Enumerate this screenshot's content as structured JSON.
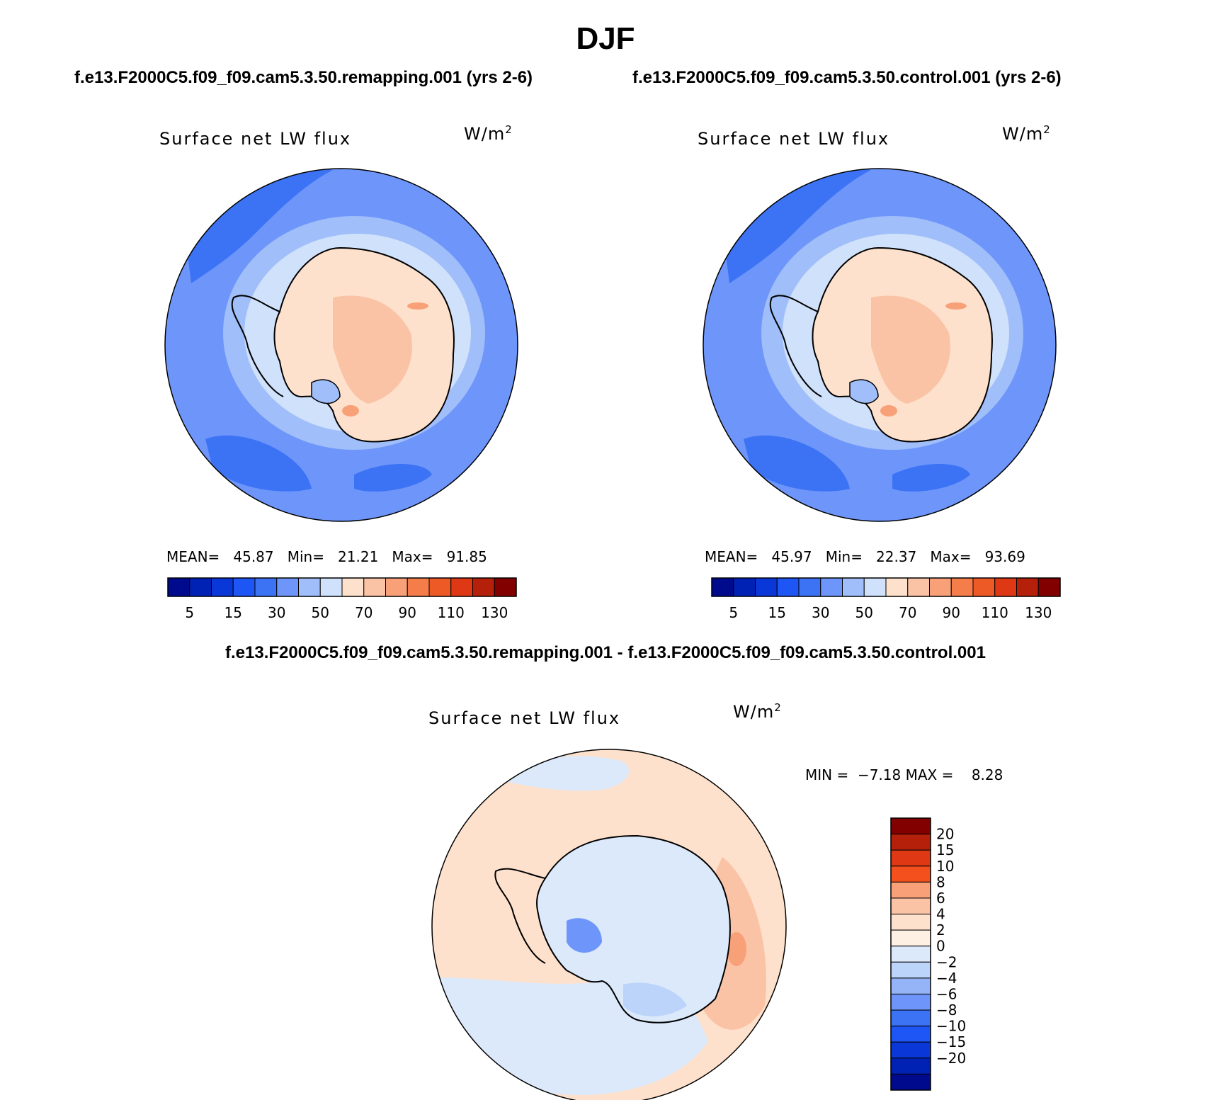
{
  "page": {
    "title": "DJF",
    "diff_subtitle": "f.e13.F2000C5.f09_f09.cam5.3.50.remapping.001 - f.e13.F2000C5.f09_f09.cam5.3.50.control.001"
  },
  "chart_data": [
    {
      "type": "heatmap",
      "subtitle": "f.e13.F2000C5.f09_f09.cam5.3.50.remapping.001 (yrs 2-6)",
      "title": "Surface net LW flux",
      "units_base": "W/m",
      "units_exp": "2",
      "stats": {
        "mean_label": "MEAN=",
        "mean": "45.87",
        "min_label": "Min=",
        "min": "21.21",
        "max_label": "Max=",
        "max": "91.85"
      },
      "colorbar": {
        "levels": [
          5,
          10,
          15,
          20,
          30,
          40,
          50,
          60,
          70,
          80,
          90,
          100,
          110,
          120,
          130
        ],
        "tick_labels": [
          "5",
          "15",
          "30",
          "50",
          "70",
          "90",
          "110",
          "130"
        ],
        "colors": [
          "#000a8c",
          "#0022b4",
          "#0a37d7",
          "#1e55f5",
          "#3c73f5",
          "#6e96fa",
          "#a0bef9",
          "#cfe1fb",
          "#fde1cc",
          "#fbc3a6",
          "#f8a078",
          "#f47d4a",
          "#ee5a26",
          "#de3814",
          "#b4200a",
          "#820000"
        ]
      }
    },
    {
      "type": "heatmap",
      "subtitle": "f.e13.F2000C5.f09_f09.cam5.3.50.control.001 (yrs 2-6)",
      "title": "Surface net LW flux",
      "units_base": "W/m",
      "units_exp": "2",
      "stats": {
        "mean_label": "MEAN=",
        "mean": "45.97",
        "min_label": "Min=",
        "min": "22.37",
        "max_label": "Max=",
        "max": "93.69"
      },
      "colorbar": {
        "levels": [
          5,
          10,
          15,
          20,
          30,
          40,
          50,
          60,
          70,
          80,
          90,
          100,
          110,
          120,
          130
        ],
        "tick_labels": [
          "5",
          "15",
          "30",
          "50",
          "70",
          "90",
          "110",
          "130"
        ],
        "colors": [
          "#000a8c",
          "#0022b4",
          "#0a37d7",
          "#1e55f5",
          "#3c73f5",
          "#6e96fa",
          "#a0bef9",
          "#cfe1fb",
          "#fde1cc",
          "#fbc3a6",
          "#f8a078",
          "#f47d4a",
          "#ee5a26",
          "#de3814",
          "#b4200a",
          "#820000"
        ]
      }
    },
    {
      "type": "heatmap",
      "title": "Surface net LW flux",
      "units_base": "W/m",
      "units_exp": "2",
      "stats": {
        "min_label": "MIN =",
        "min": "−7.18",
        "max_label": "MAX =",
        "max": "8.28"
      },
      "colorbar": {
        "tick_labels": [
          "20",
          "15",
          "10",
          "8",
          "6",
          "4",
          "2",
          "0",
          "−2",
          "−4",
          "−6",
          "−8",
          "−10",
          "−15",
          "−20"
        ],
        "colors": [
          "#820000",
          "#b4200a",
          "#de3814",
          "#f4501e",
          "#f8a078",
          "#fbc3a6",
          "#fde1cc",
          "#fff0e4",
          "#dce9fb",
          "#bcd3fa",
          "#94b4f7",
          "#6e96fa",
          "#3c73f5",
          "#1e55f5",
          "#0a37d7",
          "#0022b4",
          "#000a8c"
        ]
      }
    }
  ]
}
